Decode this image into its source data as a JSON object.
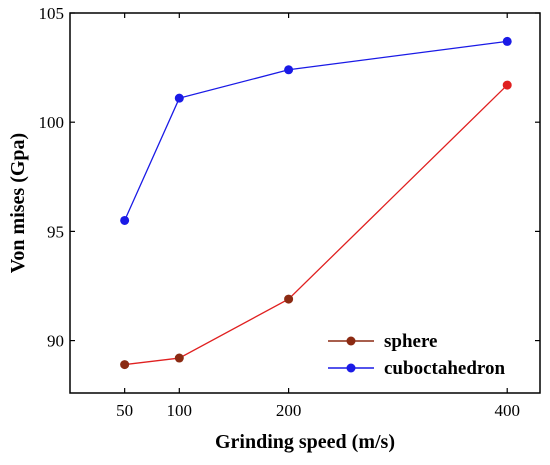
{
  "chart_data": {
    "type": "line",
    "xlabel": "Grinding speed (m/s)",
    "ylabel": "Von mises (Gpa)",
    "xlim": [
      0,
      430
    ],
    "ylim": [
      87.6,
      105
    ],
    "x_ticks": [
      50,
      100,
      200,
      400
    ],
    "y_ticks": [
      90,
      95,
      100,
      105
    ],
    "grid": false,
    "legend_position": "bottom-right",
    "series": [
      {
        "name": "sphere",
        "color": "#e02020",
        "marker_color": "#8b2a12",
        "x": [
          50,
          100,
          200,
          400
        ],
        "y": [
          88.9,
          89.2,
          91.9,
          101.7
        ]
      },
      {
        "name": "cuboctahedron",
        "color": "#1a1ae6",
        "marker_color": "#1a1ae6",
        "x": [
          50,
          100,
          200,
          400
        ],
        "y": [
          95.5,
          101.1,
          102.4,
          103.7
        ]
      }
    ]
  }
}
